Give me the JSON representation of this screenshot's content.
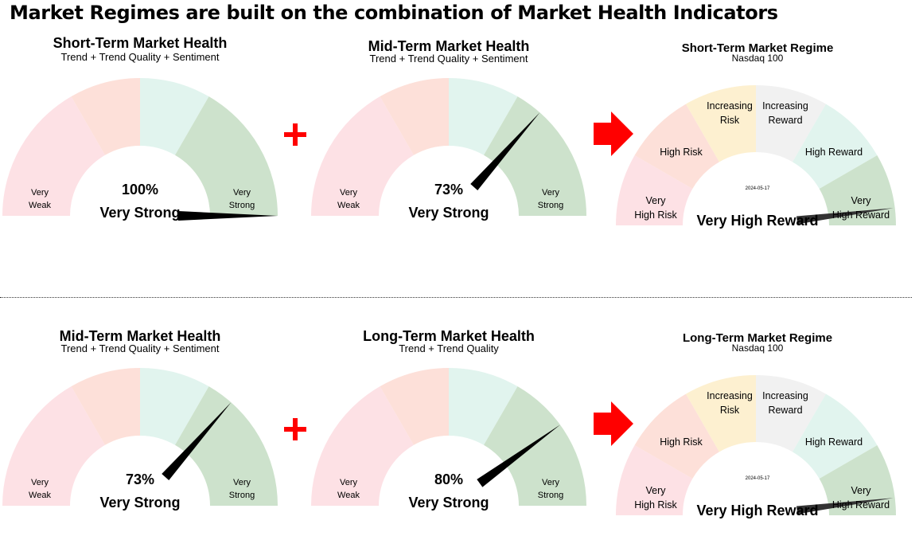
{
  "title": "Market Regimes are built on the combination of Market Health Indicators",
  "colors": {
    "very_weak": "#fde1e5",
    "weak": "#fde0d9",
    "strong": "#e1f4ee",
    "very_strong": "#cde2cc",
    "increasing_risk": "#fdf0d0",
    "increasing_reward": "#f1f1f1",
    "needle": "#000000",
    "regime_needle": "#333333",
    "accent": "#ff0000"
  },
  "health_labels": {
    "very_weak": [
      "Very",
      "Weak"
    ],
    "very_strong": [
      "Very",
      "Strong"
    ]
  },
  "regime_labels": {
    "very_high_risk": [
      "Very",
      "High Risk"
    ],
    "high_risk": [
      "High Risk"
    ],
    "increasing_risk": [
      "Increasing",
      "Risk"
    ],
    "increasing_reward": [
      "Increasing",
      "Reward"
    ],
    "high_reward": [
      "High Reward"
    ],
    "very_high_reward": [
      "Very",
      "High Reward"
    ]
  },
  "rows": [
    {
      "health": [
        {
          "title": "Short-Term Market Health",
          "subtitle": "Trend + Trend Quality + Sentiment",
          "value": 100,
          "value_label": "100%",
          "status": "Very Strong"
        },
        {
          "title": "Mid-Term Market Health",
          "subtitle": "Trend + Trend Quality + Sentiment",
          "value": 73,
          "value_label": "73%",
          "status": "Very Strong"
        }
      ],
      "regime": {
        "title": "Short-Term Market Regime",
        "subtitle": "Nasdaq 100",
        "date": "2024-05-17",
        "status": "Very High Reward",
        "value": 96
      }
    },
    {
      "health": [
        {
          "title": "Mid-Term Market Health",
          "subtitle": "Trend + Trend Quality + Sentiment",
          "value": 73,
          "value_label": "73%",
          "status": "Very Strong"
        },
        {
          "title": "Long-Term Market Health",
          "subtitle": "Trend + Trend Quality",
          "value": 80,
          "value_label": "80%",
          "status": "Very Strong"
        }
      ],
      "regime": {
        "title": "Long-Term Market Regime",
        "subtitle": "Nasdaq 100",
        "date": "2024-05-17",
        "status": "Very High Reward",
        "value": 96
      }
    }
  ]
}
